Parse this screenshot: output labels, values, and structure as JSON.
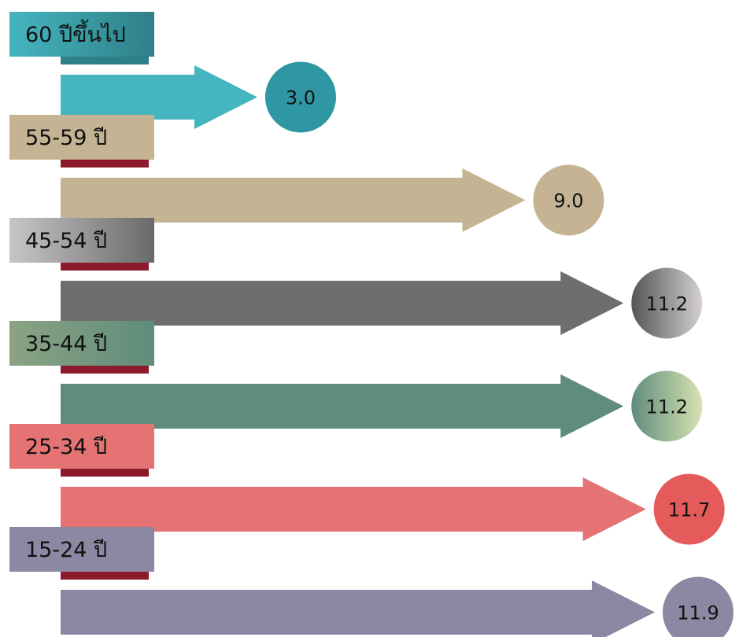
{
  "chart_data": {
    "type": "bar",
    "orientation": "horizontal-arrows",
    "categories": [
      "60 ปีขึ้นไป",
      "55-59 ปี",
      "45-54 ปี",
      "35-44 ปี",
      "25-34 ปี",
      "15-24 ปี"
    ],
    "values": [
      3.0,
      9.0,
      11.2,
      11.2,
      11.7,
      11.9
    ],
    "value_labels": [
      "3.0",
      "9.0",
      "11.2",
      "11.2",
      "11.7",
      "11.9"
    ],
    "colors": [
      "#45B5BF",
      "#C4B494",
      "#6E6E6E",
      "#5F8C7C",
      "#E57373",
      "#8A88A2"
    ],
    "circle_colors": [
      [
        "#2E97A3",
        "#2E97A3"
      ],
      [
        "#C4B494",
        "#C4B494"
      ],
      [
        "#555555",
        "#D4D0D4"
      ],
      [
        "#5F8C7C",
        "#D8E3B3"
      ],
      [
        "#E55B5B",
        "#E55B5B"
      ],
      [
        "#8A88A2",
        "#8A88A2"
      ]
    ],
    "tag_colors": [
      [
        "#45B5BF",
        "#2E7F88"
      ],
      [
        "#C4B494",
        "#C4B494"
      ],
      [
        "#C8C5C8",
        "#6A6A6A"
      ],
      [
        "#8BA383",
        "#5F8C7C"
      ],
      [
        "#E57373",
        "#E57373"
      ],
      [
        "#8A88A2",
        "#8A88A2"
      ]
    ],
    "fold_color": "#8B1A2B",
    "title": "",
    "xlabel": "",
    "ylabel": ""
  }
}
